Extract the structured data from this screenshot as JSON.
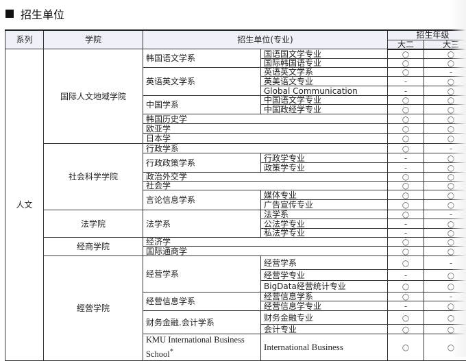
{
  "page_title": "招生单位",
  "headers": {
    "division": "系列",
    "college": "学院",
    "unit": "招生单位(专业)",
    "grade": "招生年级",
    "year2": "大二",
    "year3": "大三"
  },
  "division": "人文",
  "colleges": [
    {
      "name": "国际人文地域学院",
      "depts": [
        {
          "name": "韩国语文学系",
          "majors": [
            {
              "name": "国语国文学专业",
              "y2": "○",
              "y3": "○"
            },
            {
              "name": "国际韩国语专业",
              "y2": "○",
              "y3": "○"
            }
          ]
        },
        {
          "name": "英语英文学系",
          "majors": [
            {
              "name": "英语英文学系",
              "y2": "○",
              "y3": "-"
            },
            {
              "name": "英美语文专业",
              "y2": "-",
              "y3": "○"
            },
            {
              "name": "Global Communication",
              "y2": "-",
              "y3": "○"
            }
          ]
        },
        {
          "name": "中国学系",
          "majors": [
            {
              "name": "中国语文学专业",
              "y2": "○",
              "y3": "○"
            },
            {
              "name": "中国政经学专业",
              "y2": "○",
              "y3": "○"
            }
          ]
        },
        {
          "name": "韩国历史学",
          "majors": [],
          "y2": "○",
          "y3": "○"
        },
        {
          "name": "欧亚学",
          "majors": [],
          "y2": "○",
          "y3": "○"
        },
        {
          "name": "日本学",
          "majors": [],
          "y2": "○",
          "y3": "○"
        }
      ]
    },
    {
      "name": "社会科学学院",
      "depts": [
        {
          "name": "行政学系",
          "majors": [],
          "y2": "○",
          "y3": "-"
        },
        {
          "name": "行政政策学系",
          "majors": [
            {
              "name": "行政学专业",
              "y2": "-",
              "y3": "○"
            },
            {
              "name": "政策学专业",
              "y2": "-",
              "y3": "○"
            }
          ]
        },
        {
          "name": "政治外交学",
          "majors": [],
          "y2": "○",
          "y3": "○"
        },
        {
          "name": "社会学",
          "majors": [],
          "y2": "○",
          "y3": "○"
        },
        {
          "name": "言论信息学系",
          "majors": [
            {
              "name": "媒体专业",
              "y2": "○",
              "y3": "○"
            },
            {
              "name": "广告宣传专业",
              "y2": "○",
              "y3": "○"
            }
          ]
        }
      ]
    },
    {
      "name": "法学院",
      "depts": [
        {
          "name": "法学系",
          "majors": [
            {
              "name": "法学系",
              "y2": "○",
              "y3": "-"
            },
            {
              "name": "公法学专业",
              "y2": "-",
              "y3": "○"
            },
            {
              "name": "私法学专业",
              "y2": "-",
              "y3": "○"
            }
          ]
        }
      ]
    },
    {
      "name": "经商学院",
      "depts": [
        {
          "name": "经济学",
          "majors": [],
          "y2": "○",
          "y3": "○"
        },
        {
          "name": "国际通商学",
          "majors": [],
          "y2": "○",
          "y3": "○"
        }
      ]
    },
    {
      "name": "經營学院",
      "depts": [
        {
          "name": "经营学系",
          "majors": [
            {
              "name": "经营学系",
              "y2": "○",
              "y3": "-"
            },
            {
              "name": "经营学专业",
              "y2": "-",
              "y3": "○"
            },
            {
              "name": "BigData经营统计专业",
              "y2": "○",
              "y3": "○"
            }
          ]
        },
        {
          "name": "经营信息学系",
          "majors": [
            {
              "name": "经营信息学系",
              "y2": "○",
              "y3": "-"
            },
            {
              "name": "经营信息学专业",
              "y2": "-",
              "y3": "○"
            }
          ]
        },
        {
          "name": "财务金融.会计学系",
          "majors": [
            {
              "name": "财务金融专业",
              "y2": "○",
              "y3": "○"
            },
            {
              "name": "会计专业",
              "y2": "○",
              "y3": "○"
            }
          ]
        },
        {
          "name": "KMU International Business School",
          "note": "*",
          "majors": [
            {
              "name": "International Business",
              "y2": "○",
              "y3": "○"
            }
          ]
        }
      ]
    }
  ]
}
